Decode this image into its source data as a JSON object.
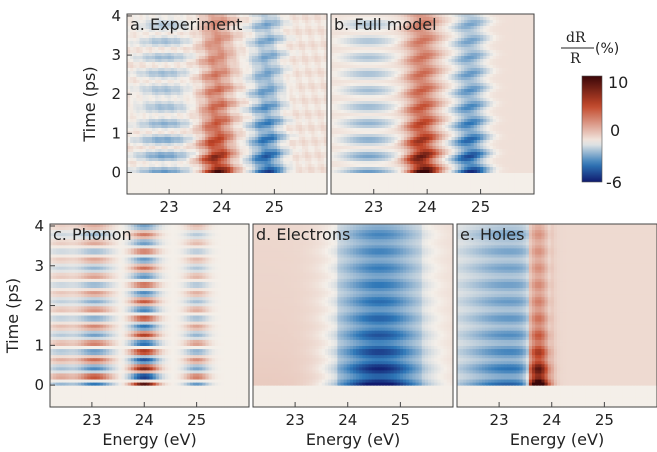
{
  "chart_data": [
    {
      "type": "heatmap",
      "panel_label": "a. Experiment",
      "ylabel": "Time (ps)",
      "xlabel": "",
      "xticks": [
        23,
        24,
        25
      ],
      "yticks": [
        0,
        1,
        2,
        3,
        4
      ],
      "xlim": [
        22.2,
        26.0
      ],
      "ylim": [
        -0.55,
        4.05
      ],
      "profile": {
        "pos": 0.7,
        "neg": 0.65,
        "neg_center": 24.85,
        "base": 0.04,
        "noise": 0.35,
        "osc": 0.55,
        "hole_peak": 0.0,
        "pos_center": 23.9,
        "pos_width": 0.28
      }
    },
    {
      "type": "heatmap",
      "panel_label": "b. Full model",
      "ylabel": "",
      "xlabel": "",
      "xticks": [
        23,
        24,
        25
      ],
      "yticks": [
        0,
        1,
        2,
        3,
        4
      ],
      "xlim": [
        22.2,
        26.0
      ],
      "ylim": [
        -0.55,
        4.05
      ],
      "profile": {
        "pos": 0.8,
        "neg": 0.7,
        "neg_center": 24.8,
        "base": 0.05,
        "noise": 0.0,
        "osc": 0.6,
        "hole_peak": 0.0,
        "pos_center": 23.9,
        "pos_width": 0.28
      }
    },
    {
      "type": "heatmap",
      "panel_label": "c. Phonon",
      "ylabel": "Time (ps)",
      "xlabel": "Energy (eV)",
      "xticks": [
        23,
        24,
        25
      ],
      "yticks": [
        0,
        1,
        2,
        3,
        4
      ],
      "xlim": [
        22.2,
        26.0
      ],
      "ylim": [
        -0.55,
        4.05
      ],
      "profile": {
        "pos": 0.6,
        "neg": 0.45,
        "neg_center": 25.0,
        "base": 0.0,
        "noise": 0.0,
        "osc": 1.0,
        "hole_peak": 0.0,
        "pos_center": 24.0,
        "pos_width": 0.25,
        "phonon": true
      }
    },
    {
      "type": "heatmap",
      "panel_label": "d. Electrons",
      "ylabel": "",
      "xlabel": "Energy (eV)",
      "xticks": [
        23,
        24,
        25
      ],
      "yticks": [
        0,
        1,
        2,
        3,
        4
      ],
      "xlim": [
        22.2,
        26.0
      ],
      "ylim": [
        -0.55,
        4.05
      ],
      "profile": {
        "pos": 0.0,
        "neg": 0.6,
        "neg_center": 24.6,
        "base": 0.08,
        "noise": 0.0,
        "osc": 0.25,
        "hole_peak": 0.0,
        "pos_center": 23.9,
        "pos_width": 0.28,
        "electrons": true
      }
    },
    {
      "type": "heatmap",
      "panel_label": "e. Holes",
      "ylabel": "",
      "xlabel": "Energy (eV)",
      "xticks": [
        23,
        24,
        25
      ],
      "yticks": [
        0,
        1,
        2,
        3,
        4
      ],
      "xlim": [
        22.2,
        26.0
      ],
      "ylim": [
        -0.55,
        4.05
      ],
      "profile": {
        "pos": 1.0,
        "neg": 0.25,
        "neg_center": 23.0,
        "base": 0.05,
        "noise": 0.0,
        "osc": 0.2,
        "hole_peak": 1.0,
        "pos_center": 23.75,
        "pos_width": 0.2,
        "holes": true
      }
    }
  ],
  "colorbar": {
    "label_numerator": "dR",
    "label_denominator": "R",
    "label_unit": "(%)",
    "max_label": "10",
    "mid_label": "0",
    "min_label": "-6",
    "range": [
      -6,
      10
    ],
    "colors": {
      "neg_end": "#101a6e",
      "neg_mid": "#2f78b8",
      "zero": "#f4efe9",
      "pos_mid": "#c2472a",
      "pos_end": "#3a0608"
    }
  }
}
